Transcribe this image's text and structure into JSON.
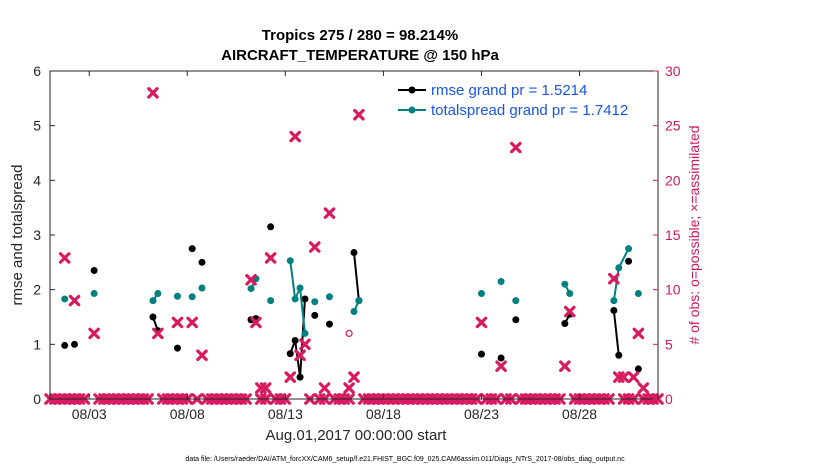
{
  "chart_data": {
    "type": "line",
    "title": "Tropics 275 / 280 = 98.214%",
    "subtitle": "AIRCRAFT_TEMPERATURE @ 150 hPa",
    "xlabel": "Aug.01,2017 00:00:00 start",
    "ylabel": "rmse and totalspread",
    "y2label": "# of obs: o=possible; ×=assimilated",
    "footer": "data file: /Users/raeder/DAI/ATM_forcXX/CAM6_setup/f.e21.FHIST_BGC.f09_025.CAM6assim.011/Diags_NTrS_2017-08/obs_diag_output.nc",
    "xlim": [
      0.5,
      31.5
    ],
    "ylim": [
      0,
      6
    ],
    "y2lim": [
      0,
      30
    ],
    "x_ticks": [
      2.5,
      7.5,
      12.5,
      17.5,
      22.5,
      27.5
    ],
    "x_tick_labels": [
      "08/03",
      "08/08",
      "08/13",
      "08/18",
      "08/23",
      "08/28"
    ],
    "y_ticks": [
      0,
      1,
      2,
      3,
      4,
      5,
      6
    ],
    "y2_ticks": [
      0,
      5,
      10,
      15,
      20,
      25,
      30
    ],
    "legend_position": "top-right",
    "series": [
      {
        "name": "rmse grand pr = 1.5214",
        "color": "#000000",
        "points": [
          [
            1.25,
            0.98
          ],
          [
            1.75,
            1.0
          ],
          [
            2.75,
            2.35
          ],
          [
            5.75,
            1.5
          ],
          [
            6.0,
            1.25
          ],
          [
            7.0,
            0.93
          ],
          [
            7.75,
            2.75
          ],
          [
            8.25,
            2.5
          ],
          [
            10.75,
            1.45
          ],
          [
            11.0,
            1.47
          ],
          [
            11.75,
            3.15
          ],
          [
            12.75,
            0.83
          ],
          [
            13.0,
            1.07
          ],
          [
            13.25,
            0.4
          ],
          [
            13.5,
            1.83
          ],
          [
            14.0,
            1.53
          ],
          [
            14.75,
            1.37
          ],
          [
            16.0,
            2.68
          ],
          [
            16.25,
            1.8
          ],
          [
            22.5,
            0.82
          ],
          [
            23.5,
            0.75
          ],
          [
            24.25,
            1.45
          ],
          [
            26.75,
            1.38
          ],
          [
            27.0,
            1.55
          ],
          [
            29.25,
            1.62
          ],
          [
            29.5,
            0.8
          ],
          [
            30.0,
            2.52
          ],
          [
            30.5,
            0.55
          ]
        ],
        "segments": [
          [
            [
              5.75,
              1.5
            ],
            [
              6.0,
              1.25
            ]
          ],
          [
            [
              12.75,
              0.83
            ],
            [
              13.0,
              1.07
            ],
            [
              13.25,
              0.4
            ],
            [
              13.5,
              1.83
            ]
          ],
          [
            [
              16.0,
              2.68
            ],
            [
              16.25,
              1.8
            ]
          ],
          [
            [
              26.75,
              1.38
            ],
            [
              27.0,
              1.55
            ]
          ],
          [
            [
              29.25,
              1.62
            ],
            [
              29.5,
              0.8
            ]
          ]
        ]
      },
      {
        "name": "totalspread grand pr = 1.7412",
        "color": "#008080",
        "points": [
          [
            1.25,
            1.83
          ],
          [
            2.75,
            1.93
          ],
          [
            5.75,
            1.8
          ],
          [
            6.0,
            1.93
          ],
          [
            7.0,
            1.88
          ],
          [
            7.75,
            1.87
          ],
          [
            8.25,
            2.03
          ],
          [
            10.75,
            2.02
          ],
          [
            11.0,
            2.2
          ],
          [
            11.75,
            1.8
          ],
          [
            12.75,
            2.53
          ],
          [
            13.0,
            1.83
          ],
          [
            13.25,
            2.03
          ],
          [
            13.5,
            1.2
          ],
          [
            14.0,
            1.78
          ],
          [
            14.75,
            1.87
          ],
          [
            16.0,
            1.6
          ],
          [
            16.25,
            1.8
          ],
          [
            22.5,
            1.93
          ],
          [
            23.5,
            2.15
          ],
          [
            24.25,
            1.8
          ],
          [
            26.75,
            2.1
          ],
          [
            27.0,
            1.93
          ],
          [
            29.25,
            1.8
          ],
          [
            29.5,
            2.4
          ],
          [
            30.0,
            2.75
          ],
          [
            30.5,
            1.93
          ]
        ],
        "segments": [
          [
            [
              5.75,
              1.8
            ],
            [
              6.0,
              1.93
            ]
          ],
          [
            [
              10.75,
              2.02
            ],
            [
              11.0,
              2.2
            ]
          ],
          [
            [
              12.75,
              2.53
            ],
            [
              13.0,
              1.83
            ]
          ],
          [
            [
              13.0,
              1.83
            ],
            [
              13.25,
              2.03
            ],
            [
              13.5,
              1.2
            ]
          ],
          [
            [
              16.0,
              1.6
            ],
            [
              16.25,
              1.8
            ]
          ],
          [
            [
              26.75,
              2.1
            ],
            [
              27.0,
              1.93
            ]
          ],
          [
            [
              29.25,
              1.8
            ],
            [
              29.5,
              2.4
            ],
            [
              30.0,
              2.75
            ]
          ]
        ]
      }
    ],
    "obs_assimilated": {
      "name": "# of obs assimilated",
      "color": "#d81b60",
      "points": [
        [
          1.25,
          12.9
        ],
        [
          1.75,
          9.0
        ],
        [
          2.75,
          6.0
        ],
        [
          5.75,
          28.0
        ],
        [
          6.0,
          6.0
        ],
        [
          7.0,
          7.0
        ],
        [
          7.75,
          7.0
        ],
        [
          8.25,
          4.0
        ],
        [
          10.75,
          10.9
        ],
        [
          11.0,
          7.0
        ],
        [
          11.25,
          1.0
        ],
        [
          11.5,
          1.0
        ],
        [
          11.75,
          12.9
        ],
        [
          12.75,
          2.0
        ],
        [
          13.0,
          24.0
        ],
        [
          13.25,
          4.0
        ],
        [
          13.5,
          5.0
        ],
        [
          14.0,
          13.9
        ],
        [
          14.5,
          1.0
        ],
        [
          14.75,
          17.0
        ],
        [
          15.75,
          1.0
        ],
        [
          16.0,
          2.0
        ],
        [
          16.25,
          26.0
        ],
        [
          22.5,
          7.0
        ],
        [
          23.5,
          3.0
        ],
        [
          24.25,
          23.0
        ],
        [
          26.75,
          3.0
        ],
        [
          27.0,
          8.0
        ],
        [
          29.25,
          11.0
        ],
        [
          29.5,
          2.0
        ],
        [
          29.75,
          2.0
        ],
        [
          30.25,
          2.0
        ],
        [
          30.5,
          6.0
        ],
        [
          30.75,
          1.0
        ]
      ],
      "zero_days": [
        0.5,
        0.75,
        1.0,
        1.25,
        1.5,
        1.75,
        2.0,
        2.25,
        3.0,
        3.25,
        3.5,
        3.75,
        4.0,
        4.25,
        4.5,
        4.75,
        5.0,
        5.25,
        5.5,
        6.25,
        6.5,
        6.75,
        7.0,
        7.25,
        7.5,
        8.0,
        8.5,
        8.75,
        9.0,
        9.25,
        9.5,
        9.75,
        10.0,
        10.25,
        10.5,
        11.25,
        11.5,
        12.0,
        12.25,
        12.5,
        13.75,
        14.25,
        14.5,
        15.0,
        15.25,
        15.5,
        15.75,
        16.5,
        16.75,
        17.0,
        17.25,
        17.5,
        17.75,
        18.0,
        18.25,
        18.5,
        18.75,
        19.0,
        19.25,
        19.5,
        19.75,
        20.0,
        20.25,
        20.5,
        20.75,
        21.0,
        21.25,
        21.5,
        21.75,
        22.0,
        22.25,
        22.75,
        23.0,
        23.25,
        23.75,
        24.0,
        24.5,
        24.75,
        25.0,
        25.25,
        25.5,
        25.75,
        26.0,
        26.25,
        26.5,
        27.25,
        27.5,
        27.75,
        28.0,
        28.25,
        28.5,
        28.75,
        29.0,
        29.75,
        30.0,
        30.25,
        30.75,
        31.0,
        31.25,
        31.5
      ]
    },
    "obs_possible": {
      "name": "# of obs possible",
      "color": "#d81b60",
      "points": [
        [
          15.75,
          6.0
        ]
      ]
    }
  }
}
